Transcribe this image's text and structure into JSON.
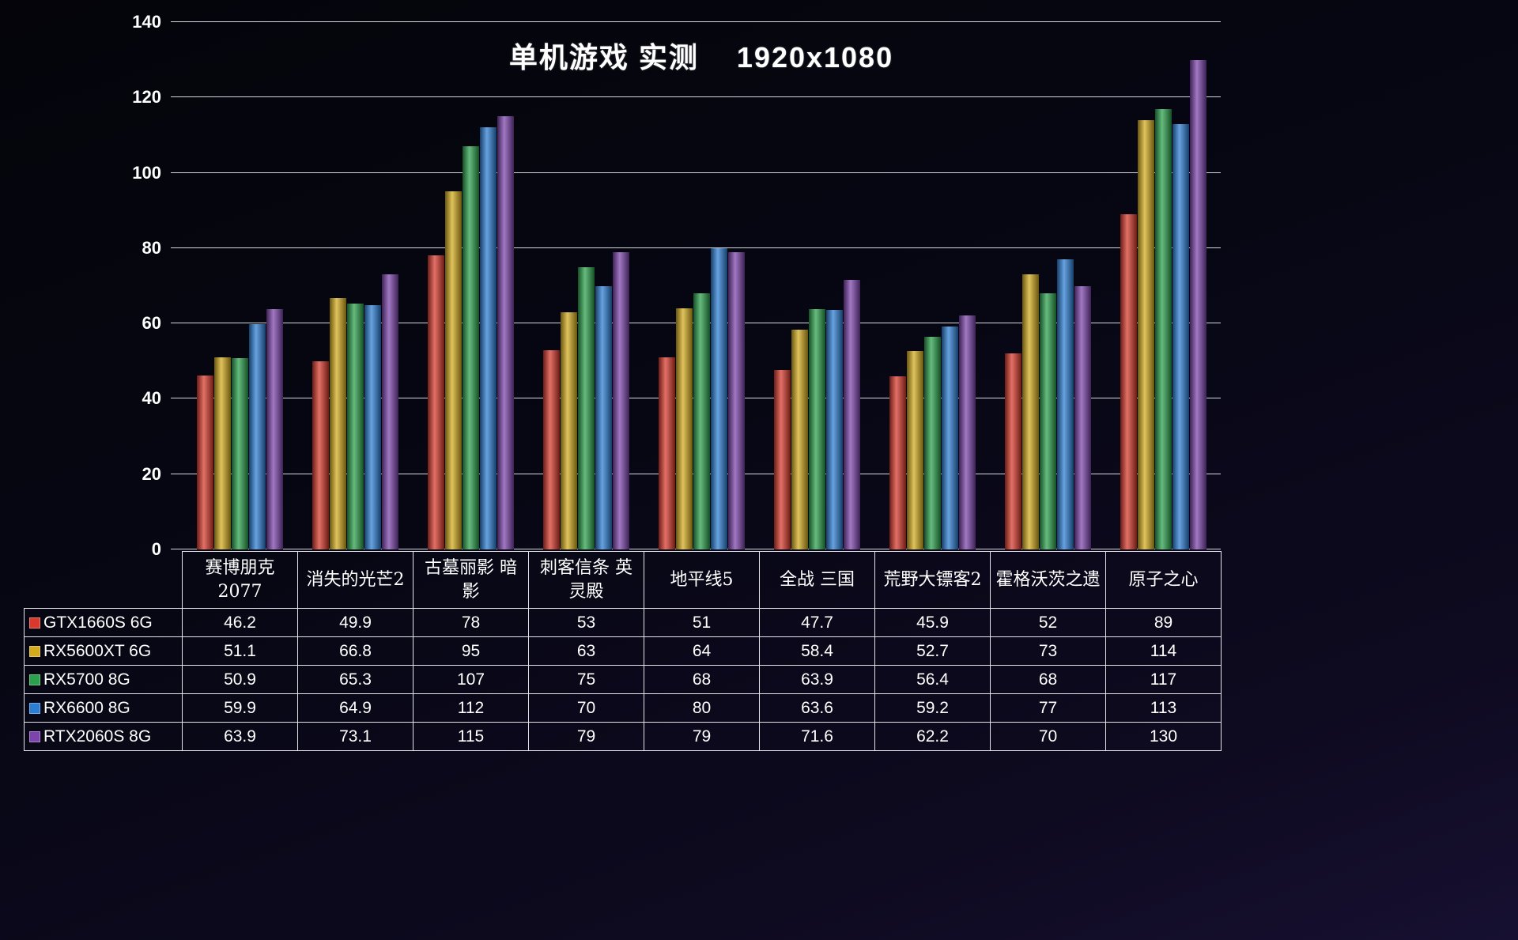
{
  "title": "单机游戏 实测    1920x1080",
  "chart_data": {
    "type": "bar",
    "title": "单机游戏 实测    1920x1080",
    "categories": [
      "赛博朋克2077",
      "消失的光芒2",
      "古墓丽影 暗影",
      "刺客信条 英灵殿",
      "地平线5",
      "全战 三国",
      "荒野大镖客2",
      "霍格沃茨之遗",
      "原子之心"
    ],
    "series": [
      {
        "name": "GTX1660S 6G",
        "color": "#d8392c",
        "values": [
          46.2,
          49.9,
          78,
          53,
          51,
          47.7,
          45.9,
          52,
          89
        ]
      },
      {
        "name": "RX5600XT 6G",
        "color": "#d4ab1d",
        "values": [
          51.1,
          66.8,
          95,
          63,
          64,
          58.4,
          52.7,
          73,
          114
        ]
      },
      {
        "name": "RX5700 8G",
        "color": "#2aa14c",
        "values": [
          50.9,
          65.3,
          107,
          75,
          68,
          63.9,
          56.4,
          68,
          117
        ]
      },
      {
        "name": "RX6600 8G",
        "color": "#2c7ed4",
        "values": [
          59.9,
          64.9,
          112,
          70,
          80,
          63.6,
          59.2,
          77,
          113
        ]
      },
      {
        "name": "RTX2060S 8G",
        "color": "#7c44ac",
        "values": [
          63.9,
          73.1,
          115,
          79,
          79,
          71.6,
          62.2,
          70,
          130
        ]
      }
    ],
    "xlabel": "",
    "ylabel": "",
    "ylim": [
      0,
      140
    ],
    "yticks": [
      0,
      20,
      40,
      60,
      80,
      100,
      120,
      140
    ],
    "grid": true,
    "gridline_color": "#eceef5",
    "background_top": "#04040a",
    "background_bottom": "#171031",
    "legend_position": "table-rows-left"
  }
}
